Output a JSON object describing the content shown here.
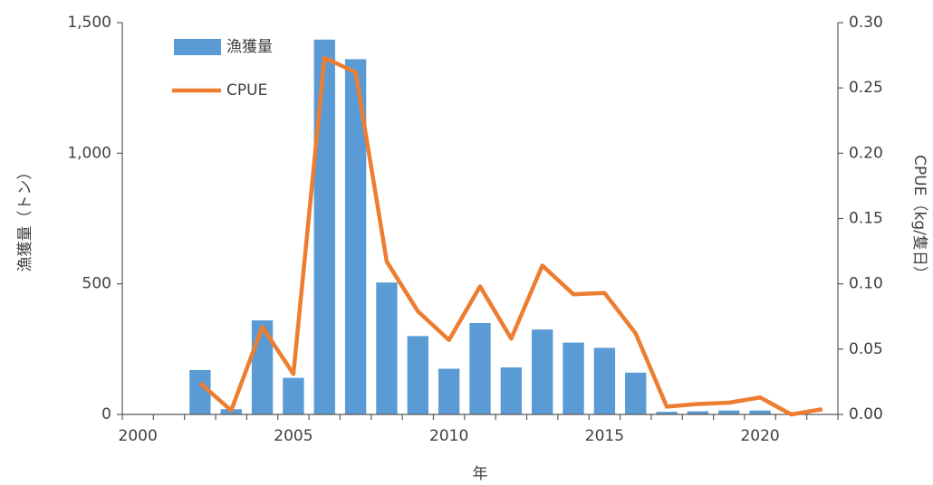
{
  "chart_data": {
    "type": "bar_line",
    "categories": [
      "2000",
      null,
      null,
      null,
      null,
      "2005",
      null,
      null,
      null,
      null,
      "2010",
      null,
      null,
      null,
      null,
      "2015",
      null,
      null,
      null,
      null,
      "2020",
      null,
      null
    ],
    "series": [
      {
        "name": "漁獲量",
        "color": "#5b9bd5",
        "type": "bar",
        "values": [
          null,
          null,
          170,
          20,
          360,
          140,
          1435,
          1360,
          505,
          300,
          175,
          350,
          180,
          325,
          275,
          255,
          160,
          10,
          12,
          15,
          15,
          0,
          0
        ]
      },
      {
        "name": "CPUE",
        "color": "#ed7d31",
        "type": "line",
        "axis": "y2",
        "values": [
          null,
          null,
          0.024,
          0.003,
          0.067,
          0.031,
          0.273,
          0.262,
          0.117,
          0.079,
          0.057,
          0.098,
          0.058,
          0.114,
          0.092,
          0.093,
          0.062,
          0.006,
          0.008,
          0.009,
          0.013,
          0.0,
          0.004
        ]
      }
    ],
    "ylim": [
      0,
      1500
    ],
    "yticks": [
      0,
      500,
      {
        "value": 1000,
        "label": "1,000"
      },
      {
        "value": 1500,
        "label": "1,500"
      }
    ],
    "y2lim": [
      0,
      0.3
    ],
    "y2ticks": [
      {
        "value": 0,
        "label": "0.00"
      },
      {
        "value": 0.05,
        "label": "0.05"
      },
      {
        "value": 0.1,
        "label": "0.10"
      },
      {
        "value": 0.15,
        "label": "0.15"
      },
      {
        "value": 0.2,
        "label": "0.20"
      },
      {
        "value": 0.25,
        "label": "0.25"
      },
      {
        "value": 0.3,
        "label": "0.30"
      }
    ],
    "xlabel": "年",
    "ylabel": "漁獲量（トン）",
    "y2label": "CPUE（kg/隻日）",
    "legend": "top-left"
  }
}
